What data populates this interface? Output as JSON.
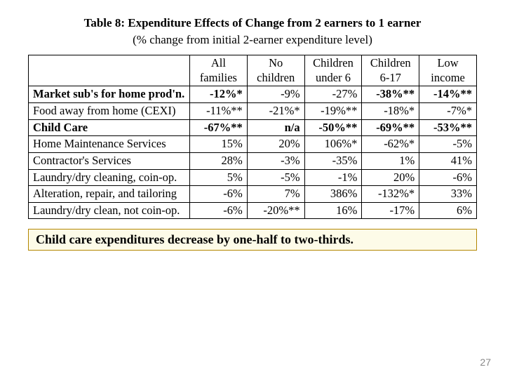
{
  "title": "Table 8: Expenditure Effects of Change from 2 earners to 1 earner",
  "subtitle": "(% change from initial 2-earner expenditure level)",
  "columns": [
    {
      "line1": "All",
      "line2": "families"
    },
    {
      "line1": "No",
      "line2": "children"
    },
    {
      "line1": "Children",
      "line2": "under 6"
    },
    {
      "line1": "Children",
      "line2": "6-17"
    },
    {
      "line1": "Low",
      "line2": "income"
    }
  ],
  "rows": [
    {
      "label": "Market sub's for home prod'n.",
      "bold": true,
      "cells": [
        {
          "v": "-12%*",
          "bold": true
        },
        {
          "v": "-9%"
        },
        {
          "v": "-27%"
        },
        {
          "v": "-38%**",
          "bold": true
        },
        {
          "v": "-14%**",
          "bold": true
        }
      ]
    },
    {
      "label": "Food away from home (CEXI)",
      "cells": [
        {
          "v": "-11%**"
        },
        {
          "v": "-21%*"
        },
        {
          "v": "-19%**"
        },
        {
          "v": "-18%*"
        },
        {
          "v": "-7%*"
        }
      ]
    },
    {
      "label": "Child Care",
      "bold": true,
      "cells": [
        {
          "v": "-67%**",
          "bold": true
        },
        {
          "v": "n/a",
          "bold": true
        },
        {
          "v": "-50%**",
          "bold": true
        },
        {
          "v": "-69%**",
          "bold": true
        },
        {
          "v": "-53%**",
          "bold": true
        }
      ]
    },
    {
      "label": "Home Maintenance Services",
      "cells": [
        {
          "v": "15%"
        },
        {
          "v": "20%"
        },
        {
          "v": "106%*"
        },
        {
          "v": "-62%*"
        },
        {
          "v": "-5%"
        }
      ]
    },
    {
      "label": "Contractor's Services",
      "cells": [
        {
          "v": "28%"
        },
        {
          "v": "-3%"
        },
        {
          "v": "-35%"
        },
        {
          "v": "1%"
        },
        {
          "v": "41%"
        }
      ]
    },
    {
      "label": "Laundry/dry cleaning, coin-op.",
      "cells": [
        {
          "v": "5%"
        },
        {
          "v": "-5%"
        },
        {
          "v": "-1%"
        },
        {
          "v": "20%"
        },
        {
          "v": "-6%"
        }
      ]
    },
    {
      "label": "Alteration, repair, and tailoring",
      "cells": [
        {
          "v": "-6%"
        },
        {
          "v": "7%"
        },
        {
          "v": "386%"
        },
        {
          "v": "-132%*"
        },
        {
          "v": "33%"
        }
      ]
    },
    {
      "label": "Laundry/dry clean, not coin-op.",
      "cells": [
        {
          "v": "-6%"
        },
        {
          "v": "-20%**"
        },
        {
          "v": "16%"
        },
        {
          "v": "-17%"
        },
        {
          "v": "6%"
        }
      ]
    }
  ],
  "callout": "Child care expenditures decrease by one-half to two-thirds.",
  "page_number": "27",
  "colors": {
    "callout_border": "#b38600",
    "callout_bg": "#fdfbe8",
    "pagenum": "#888888"
  }
}
